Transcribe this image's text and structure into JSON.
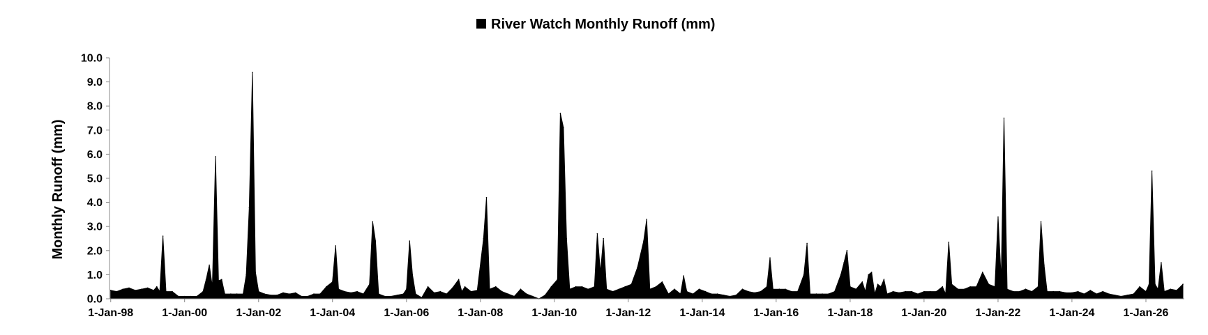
{
  "chart_data": {
    "type": "area",
    "title": "",
    "legend": {
      "position": "top",
      "entries": [
        "River Watch Monthly Runoff (mm)"
      ]
    },
    "xlabel": "",
    "ylabel": "Monthly Runoff (mm)",
    "ylim": [
      0,
      10
    ],
    "y_ticks": [
      "0.0",
      "1.0",
      "2.0",
      "3.0",
      "4.0",
      "5.0",
      "6.0",
      "7.0",
      "8.0",
      "9.0",
      "10.0"
    ],
    "x_range": [
      "1997-12-20",
      "2027-01-15"
    ],
    "x_tick_labels": [
      "1-Jan-98",
      "1-Jan-00",
      "1-Jan-02",
      "1-Jan-04",
      "1-Jan-06",
      "1-Jan-08",
      "1-Jan-10",
      "1-Jan-12",
      "1-Jan-14",
      "1-Jan-16",
      "1-Jan-18",
      "1-Jan-20",
      "1-Jan-22",
      "1-Jan-24",
      "1-Jan-26"
    ],
    "x_tick_dates": [
      "1998-01-01",
      "2000-01-01",
      "2002-01-01",
      "2004-01-01",
      "2006-01-01",
      "2008-01-01",
      "2010-01-01",
      "2012-01-01",
      "2014-01-01",
      "2016-01-01",
      "2018-01-01",
      "2020-01-01",
      "2022-01-01",
      "2024-01-01",
      "2026-01-01"
    ],
    "grid": false,
    "color": "#000000",
    "series": [
      {
        "name": "River Watch Monthly Runoff (mm)",
        "points": [
          [
            "1998-01-01",
            0.35
          ],
          [
            "1998-03-01",
            0.3
          ],
          [
            "1998-05-01",
            0.4
          ],
          [
            "1998-07-01",
            0.45
          ],
          [
            "1998-09-01",
            0.35
          ],
          [
            "1998-11-01",
            0.4
          ],
          [
            "1999-01-01",
            0.45
          ],
          [
            "1999-03-01",
            0.35
          ],
          [
            "1999-04-01",
            0.5
          ],
          [
            "1999-05-01",
            0.3
          ],
          [
            "1999-06-01",
            2.6
          ],
          [
            "1999-07-01",
            0.3
          ],
          [
            "1999-09-01",
            0.3
          ],
          [
            "1999-11-01",
            0.1
          ],
          [
            "2000-01-01",
            0.1
          ],
          [
            "2000-03-01",
            0.1
          ],
          [
            "2000-05-01",
            0.1
          ],
          [
            "2000-07-01",
            0.3
          ],
          [
            "2000-08-01",
            0.8
          ],
          [
            "2000-09-01",
            1.4
          ],
          [
            "2000-10-01",
            0.5
          ],
          [
            "2000-11-01",
            5.9
          ],
          [
            "2000-12-01",
            0.75
          ],
          [
            "2001-01-01",
            0.8
          ],
          [
            "2001-02-01",
            0.2
          ],
          [
            "2001-04-01",
            0.2
          ],
          [
            "2001-06-01",
            0.2
          ],
          [
            "2001-08-01",
            0.2
          ],
          [
            "2001-09-01",
            1.0
          ],
          [
            "2001-10-01",
            3.8
          ],
          [
            "2001-11-01",
            9.4
          ],
          [
            "2001-12-01",
            1.1
          ],
          [
            "2002-01-01",
            0.3
          ],
          [
            "2002-03-01",
            0.2
          ],
          [
            "2002-05-01",
            0.15
          ],
          [
            "2002-07-01",
            0.15
          ],
          [
            "2002-09-01",
            0.25
          ],
          [
            "2002-11-01",
            0.2
          ],
          [
            "2003-01-01",
            0.25
          ],
          [
            "2003-03-01",
            0.1
          ],
          [
            "2003-05-01",
            0.1
          ],
          [
            "2003-07-01",
            0.2
          ],
          [
            "2003-09-01",
            0.2
          ],
          [
            "2003-11-01",
            0.5
          ],
          [
            "2004-01-01",
            0.7
          ],
          [
            "2004-02-01",
            2.2
          ],
          [
            "2004-03-01",
            0.4
          ],
          [
            "2004-05-01",
            0.3
          ],
          [
            "2004-07-01",
            0.25
          ],
          [
            "2004-09-01",
            0.3
          ],
          [
            "2004-11-01",
            0.2
          ],
          [
            "2005-01-01",
            0.6
          ],
          [
            "2005-02-01",
            3.2
          ],
          [
            "2005-03-01",
            2.4
          ],
          [
            "2005-04-01",
            0.2
          ],
          [
            "2005-06-01",
            0.1
          ],
          [
            "2005-08-01",
            0.1
          ],
          [
            "2005-10-01",
            0.15
          ],
          [
            "2005-12-01",
            0.2
          ],
          [
            "2006-01-01",
            0.4
          ],
          [
            "2006-02-01",
            2.4
          ],
          [
            "2006-03-01",
            1.0
          ],
          [
            "2006-04-01",
            0.2
          ],
          [
            "2006-06-01",
            0.05
          ],
          [
            "2006-08-01",
            0.5
          ],
          [
            "2006-10-01",
            0.25
          ],
          [
            "2006-12-01",
            0.3
          ],
          [
            "2007-02-01",
            0.2
          ],
          [
            "2007-04-01",
            0.45
          ],
          [
            "2007-06-01",
            0.8
          ],
          [
            "2007-07-01",
            0.3
          ],
          [
            "2007-08-01",
            0.5
          ],
          [
            "2007-10-01",
            0.3
          ],
          [
            "2007-12-01",
            0.35
          ],
          [
            "2008-02-01",
            2.5
          ],
          [
            "2008-03-01",
            4.2
          ],
          [
            "2008-04-01",
            0.4
          ],
          [
            "2008-06-01",
            0.5
          ],
          [
            "2008-08-01",
            0.3
          ],
          [
            "2008-10-01",
            0.2
          ],
          [
            "2008-12-01",
            0.1
          ],
          [
            "2009-02-01",
            0.4
          ],
          [
            "2009-04-01",
            0.2
          ],
          [
            "2009-06-01",
            0.1
          ],
          [
            "2009-08-01",
            0.0
          ],
          [
            "2009-10-01",
            0.15
          ],
          [
            "2009-12-01",
            0.5
          ],
          [
            "2010-02-01",
            0.8
          ],
          [
            "2010-03-01",
            7.7
          ],
          [
            "2010-04-01",
            7.1
          ],
          [
            "2010-05-01",
            2.5
          ],
          [
            "2010-06-01",
            0.4
          ],
          [
            "2010-08-01",
            0.5
          ],
          [
            "2010-10-01",
            0.5
          ],
          [
            "2010-12-01",
            0.4
          ],
          [
            "2011-02-01",
            0.5
          ],
          [
            "2011-03-01",
            2.7
          ],
          [
            "2011-04-01",
            1.1
          ],
          [
            "2011-05-01",
            2.5
          ],
          [
            "2011-06-01",
            0.4
          ],
          [
            "2011-08-01",
            0.3
          ],
          [
            "2011-10-01",
            0.4
          ],
          [
            "2011-12-01",
            0.5
          ],
          [
            "2012-02-01",
            0.6
          ],
          [
            "2012-04-01",
            1.3
          ],
          [
            "2012-06-01",
            2.4
          ],
          [
            "2012-07-01",
            3.3
          ],
          [
            "2012-08-01",
            0.4
          ],
          [
            "2012-10-01",
            0.5
          ],
          [
            "2012-12-01",
            0.7
          ],
          [
            "2013-02-01",
            0.2
          ],
          [
            "2013-04-01",
            0.4
          ],
          [
            "2013-06-01",
            0.2
          ],
          [
            "2013-07-01",
            0.95
          ],
          [
            "2013-08-01",
            0.3
          ],
          [
            "2013-10-01",
            0.2
          ],
          [
            "2013-12-01",
            0.4
          ],
          [
            "2014-02-01",
            0.3
          ],
          [
            "2014-04-01",
            0.2
          ],
          [
            "2014-06-01",
            0.2
          ],
          [
            "2014-08-01",
            0.15
          ],
          [
            "2014-10-01",
            0.1
          ],
          [
            "2014-12-01",
            0.15
          ],
          [
            "2015-02-01",
            0.4
          ],
          [
            "2015-04-01",
            0.3
          ],
          [
            "2015-06-01",
            0.25
          ],
          [
            "2015-08-01",
            0.3
          ],
          [
            "2015-10-01",
            0.5
          ],
          [
            "2015-11-01",
            1.7
          ],
          [
            "2015-12-01",
            0.4
          ],
          [
            "2016-02-01",
            0.4
          ],
          [
            "2016-04-01",
            0.4
          ],
          [
            "2016-06-01",
            0.3
          ],
          [
            "2016-08-01",
            0.3
          ],
          [
            "2016-10-01",
            1.0
          ],
          [
            "2016-11-01",
            2.3
          ],
          [
            "2016-12-01",
            0.2
          ],
          [
            "2017-02-01",
            0.2
          ],
          [
            "2017-04-01",
            0.2
          ],
          [
            "2017-06-01",
            0.2
          ],
          [
            "2017-08-01",
            0.3
          ],
          [
            "2017-10-01",
            1.0
          ],
          [
            "2017-11-01",
            1.5
          ],
          [
            "2017-12-01",
            2.0
          ],
          [
            "2018-01-01",
            0.5
          ],
          [
            "2018-03-01",
            0.4
          ],
          [
            "2018-05-01",
            0.7
          ],
          [
            "2018-06-01",
            0.3
          ],
          [
            "2018-07-01",
            1.0
          ],
          [
            "2018-08-01",
            1.1
          ],
          [
            "2018-09-01",
            0.2
          ],
          [
            "2018-10-01",
            0.6
          ],
          [
            "2018-11-01",
            0.5
          ],
          [
            "2018-12-01",
            0.8
          ],
          [
            "2019-01-01",
            0.2
          ],
          [
            "2019-03-01",
            0.3
          ],
          [
            "2019-05-01",
            0.25
          ],
          [
            "2019-07-01",
            0.3
          ],
          [
            "2019-09-01",
            0.3
          ],
          [
            "2019-11-01",
            0.2
          ],
          [
            "2020-01-01",
            0.3
          ],
          [
            "2020-03-01",
            0.3
          ],
          [
            "2020-05-01",
            0.3
          ],
          [
            "2020-07-01",
            0.5
          ],
          [
            "2020-08-01",
            0.2
          ],
          [
            "2020-09-01",
            2.35
          ],
          [
            "2020-10-01",
            0.6
          ],
          [
            "2020-12-01",
            0.4
          ],
          [
            "2021-02-01",
            0.4
          ],
          [
            "2021-04-01",
            0.5
          ],
          [
            "2021-06-01",
            0.5
          ],
          [
            "2021-08-01",
            1.1
          ],
          [
            "2021-10-01",
            0.6
          ],
          [
            "2021-12-01",
            0.5
          ],
          [
            "2022-01-01",
            3.4
          ],
          [
            "2022-02-01",
            0.8
          ],
          [
            "2022-03-01",
            7.5
          ],
          [
            "2022-04-01",
            0.4
          ],
          [
            "2022-06-01",
            0.3
          ],
          [
            "2022-08-01",
            0.3
          ],
          [
            "2022-10-01",
            0.4
          ],
          [
            "2022-12-01",
            0.3
          ],
          [
            "2023-02-01",
            0.5
          ],
          [
            "2023-03-01",
            3.2
          ],
          [
            "2023-04-01",
            1.4
          ],
          [
            "2023-05-01",
            0.3
          ],
          [
            "2023-07-01",
            0.3
          ],
          [
            "2023-09-01",
            0.3
          ],
          [
            "2023-11-01",
            0.25
          ],
          [
            "2024-01-01",
            0.25
          ],
          [
            "2024-03-01",
            0.3
          ],
          [
            "2024-05-01",
            0.2
          ],
          [
            "2024-07-01",
            0.35
          ],
          [
            "2024-09-01",
            0.2
          ],
          [
            "2024-11-01",
            0.3
          ],
          [
            "2025-01-01",
            0.2
          ],
          [
            "2025-03-01",
            0.15
          ],
          [
            "2025-05-01",
            0.1
          ],
          [
            "2025-07-01",
            0.15
          ],
          [
            "2025-09-01",
            0.2
          ],
          [
            "2025-11-01",
            0.5
          ],
          [
            "2026-01-01",
            0.3
          ],
          [
            "2026-02-01",
            0.6
          ],
          [
            "2026-03-01",
            5.3
          ],
          [
            "2026-04-01",
            0.6
          ],
          [
            "2026-05-01",
            0.4
          ],
          [
            "2026-06-01",
            1.5
          ],
          [
            "2026-07-01",
            0.3
          ],
          [
            "2026-09-01",
            0.4
          ],
          [
            "2026-11-01",
            0.35
          ],
          [
            "2027-01-01",
            0.6
          ]
        ]
      }
    ]
  }
}
